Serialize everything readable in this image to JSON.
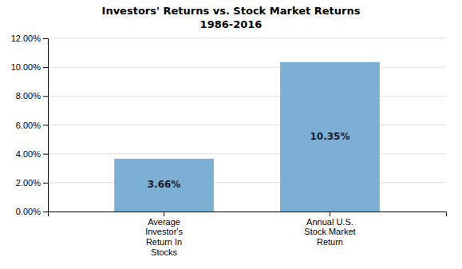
{
  "chart_data": {
    "type": "bar",
    "title": "Investors' Returns vs. Stock Market Returns",
    "subtitle": "1986-2016",
    "categories": [
      "Average\nInvestor's\nReturn In\nStocks",
      "Annual U.S.\nStock Market\nReturn"
    ],
    "values": [
      0.0366,
      0.1035
    ],
    "value_labels": [
      "3.66%",
      "10.35%"
    ],
    "data_labels": true,
    "color": "#7BAFD4",
    "ylim": [
      0,
      0.12
    ],
    "yticks": [
      {
        "value": 0.0,
        "label": "0.00%"
      },
      {
        "value": 0.02,
        "label": "2.00%"
      },
      {
        "value": 0.04,
        "label": "4.00%"
      },
      {
        "value": 0.06,
        "label": "6.00%"
      },
      {
        "value": 0.08,
        "label": "8.00%"
      },
      {
        "value": 0.1,
        "label": "10.00%"
      },
      {
        "value": 0.12,
        "label": "12.00%"
      }
    ],
    "grid": true
  }
}
